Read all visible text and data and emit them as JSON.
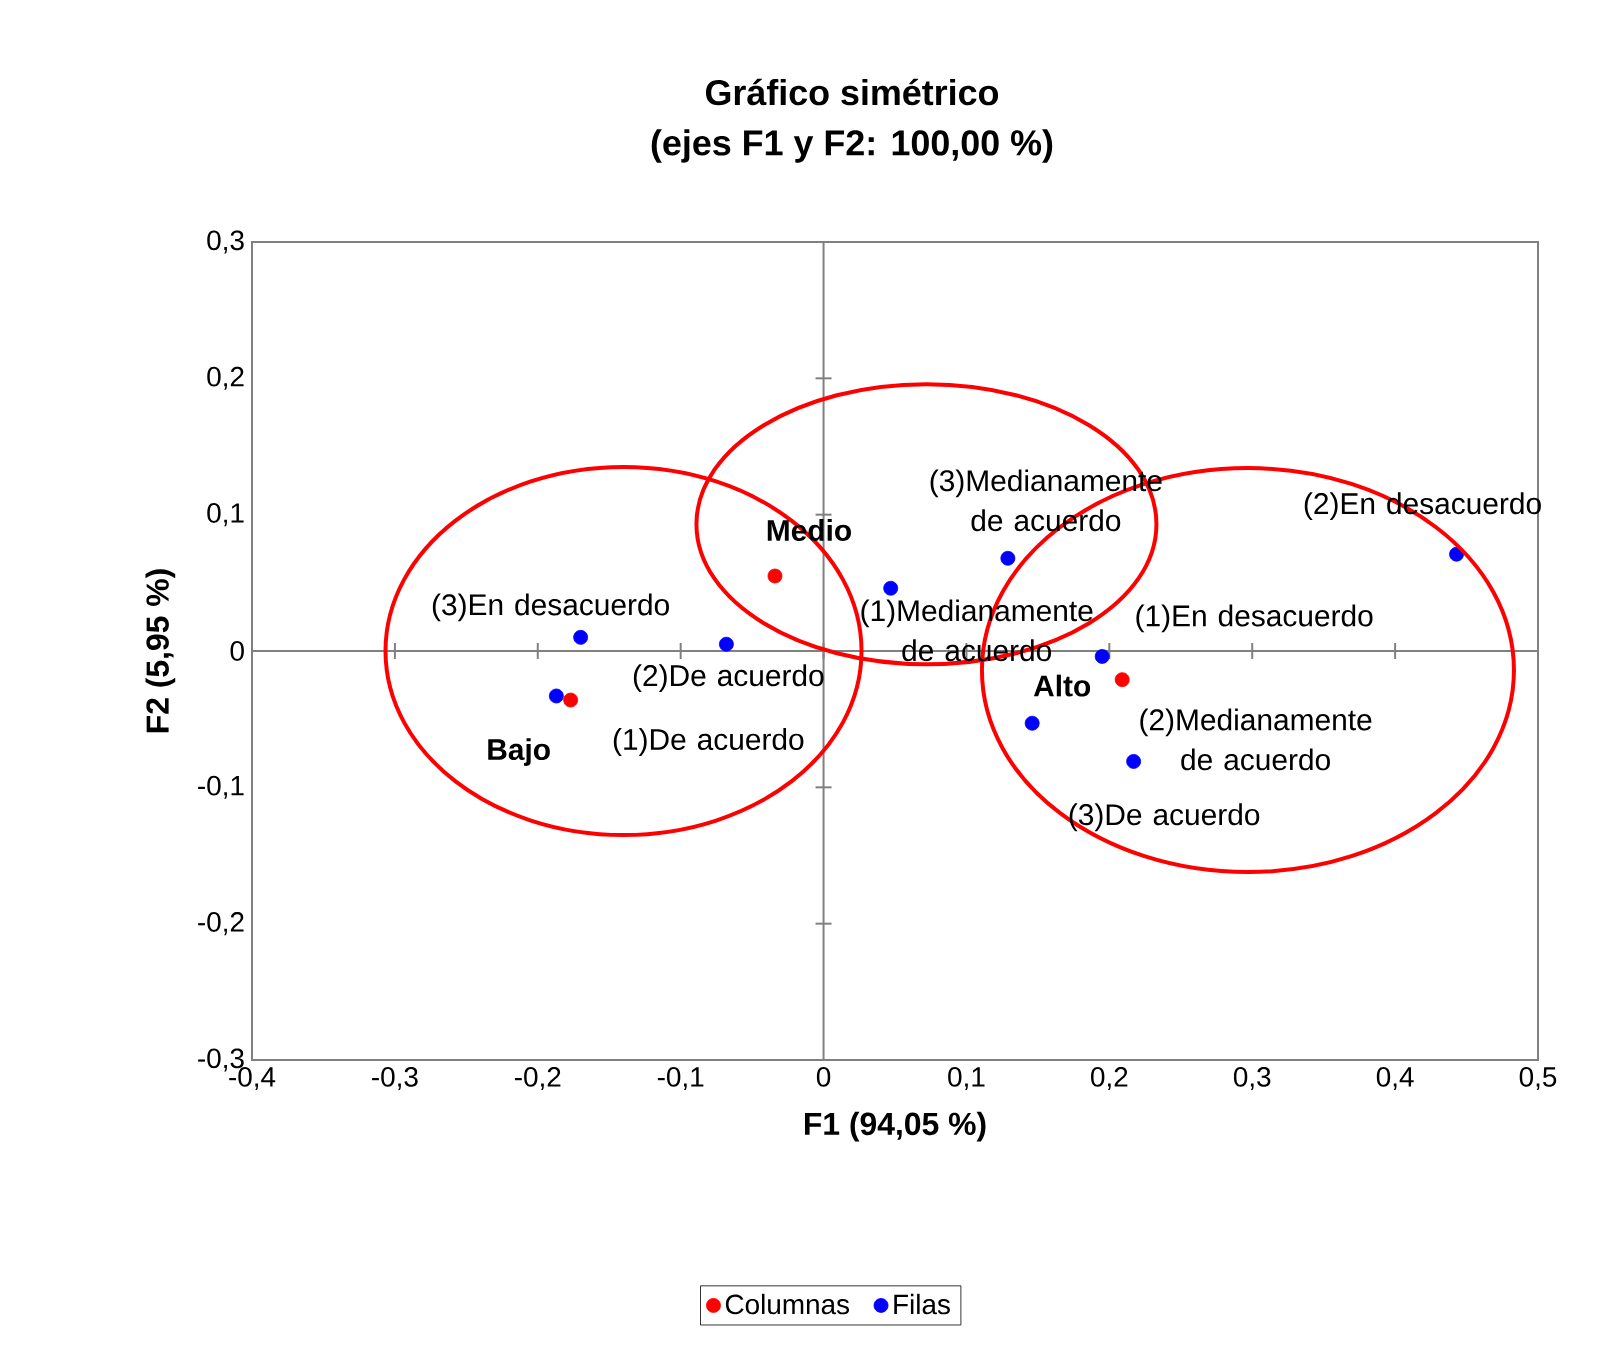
{
  "chart_data": {
    "type": "scatter",
    "title": "Gráfico simétrico",
    "subtitle": "(ejes F1 y F2: 100,00 %)",
    "xlabel": "F1 (94,05 %)",
    "ylabel": "F2 (5,95 %)",
    "xlim": [
      -0.4,
      0.5
    ],
    "ylim": [
      -0.3,
      0.3
    ],
    "xticks": [
      {
        "value": -0.4,
        "label": "-0,4"
      },
      {
        "value": -0.3,
        "label": "-0,3"
      },
      {
        "value": -0.2,
        "label": "-0,2"
      },
      {
        "value": -0.1,
        "label": "-0,1"
      },
      0,
      {
        "value": 0.1,
        "label": "0,1"
      },
      {
        "value": 0.2,
        "label": "0,2"
      },
      {
        "value": 0.3,
        "label": "0,3"
      },
      {
        "value": 0.4,
        "label": "0,4"
      },
      {
        "value": 0.5,
        "label": "0,5"
      }
    ],
    "yticks": [
      {
        "value": -0.3,
        "label": "-0,3"
      },
      {
        "value": -0.2,
        "label": "-0,2"
      },
      {
        "value": -0.1,
        "label": "-0,1"
      },
      0,
      {
        "value": 0.1,
        "label": "0,1"
      },
      {
        "value": 0.2,
        "label": "0,2"
      },
      {
        "value": 0.3,
        "label": "0,3"
      }
    ],
    "marker": "circle",
    "legend": "bottom",
    "series": [
      {
        "name": "Columnas",
        "color": "#ff0000",
        "x": [
          -0.034,
          -0.177,
          0.209
        ],
        "values": [
          0.055,
          -0.036,
          -0.021
        ]
      },
      {
        "name": "Filas",
        "color": "#0000ff",
        "x": [
          -0.17,
          -0.068,
          -0.187,
          0.047,
          0.129,
          0.443,
          0.195,
          0.217,
          0.146
        ],
        "values": [
          0.01,
          0.005,
          -0.033,
          0.046,
          0.068,
          0.071,
          -0.004,
          -0.081,
          -0.053
        ]
      }
    ],
    "annotations": [
      {
        "text": "**Medio**",
        "x": -0.034,
        "y": 0.055
      },
      {
        "text": "**Bajo**",
        "x": -0.177,
        "y": -0.036
      },
      {
        "text": "**Alto**",
        "x": 0.209,
        "y": -0.021
      },
      {
        "text": "(3)En desacuerdo",
        "x": -0.17,
        "y": 0.01
      },
      {
        "text": "(2)De acuerdo",
        "x": -0.068,
        "y": 0.005
      },
      {
        "text": "(1)De acuerdo",
        "x": -0.187,
        "y": -0.033
      },
      {
        "text": "(1)Medianamente de acuerdo",
        "x": 0.047,
        "y": 0.046
      },
      {
        "text": "(3)Medianamente de acuerdo",
        "x": 0.129,
        "y": 0.068
      },
      {
        "text": "(2)En desacuerdo",
        "x": 0.443,
        "y": 0.071
      },
      {
        "text": "(1)En desacuerdo",
        "x": 0.195,
        "y": -0.004
      },
      {
        "text": "(2)Medianamente de acuerdo",
        "x": 0.217,
        "y": -0.081
      },
      {
        "text": "(3)De acuerdo",
        "x": 0.146,
        "y": -0.053
      }
    ]
  }
}
